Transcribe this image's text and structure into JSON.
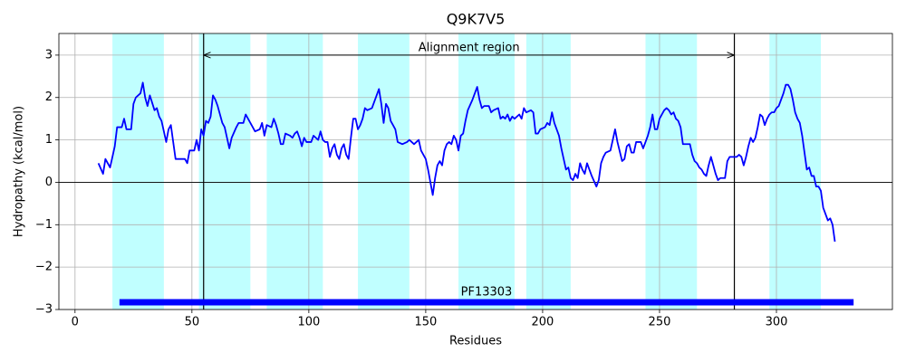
{
  "chart_data": {
    "type": "line",
    "title": "Q9K7V5",
    "xlabel": "Residues",
    "ylabel": "Hydropathy (kcal/mol)",
    "x": [
      10,
      12,
      13,
      15,
      17,
      18,
      20,
      21,
      22,
      24,
      25,
      26,
      28,
      29,
      30,
      31,
      32,
      34,
      35,
      36,
      37,
      38,
      39,
      40,
      41,
      42,
      43,
      46,
      47,
      48,
      49,
      51,
      52,
      53,
      54,
      55,
      56,
      57,
      58,
      59,
      60,
      61,
      63,
      64,
      66,
      67,
      69,
      70,
      72,
      73,
      75,
      77,
      79,
      80,
      81,
      82,
      84,
      85,
      86,
      87,
      88,
      89,
      90,
      92,
      93,
      94,
      95,
      96,
      97,
      98,
      99,
      101,
      102,
      103,
      104,
      105,
      106,
      107,
      108,
      109,
      110,
      111,
      112,
      113,
      114,
      115,
      116,
      117,
      118,
      119,
      120,
      121,
      122,
      123,
      124,
      125,
      127,
      130,
      131,
      132,
      133,
      134,
      135,
      136,
      137,
      138,
      140,
      142,
      143,
      144,
      145,
      147,
      148,
      150,
      151,
      152,
      153,
      154,
      155,
      156,
      157,
      158,
      159,
      160,
      161,
      162,
      163,
      164,
      165,
      166,
      167,
      168,
      170,
      172,
      173,
      174,
      175,
      177,
      178,
      179,
      181,
      182,
      183,
      184,
      185,
      186,
      187,
      188,
      190,
      191,
      192,
      193,
      195,
      196,
      197,
      198,
      199,
      201,
      202,
      203,
      204,
      205,
      207,
      208,
      209,
      210,
      211,
      212,
      213,
      214,
      215,
      216,
      217,
      218,
      219,
      220,
      221,
      223,
      224,
      225,
      226,
      227,
      229,
      231,
      232,
      234,
      235,
      236,
      237,
      238,
      239,
      240,
      242,
      243,
      245,
      246,
      247,
      248,
      249,
      250,
      251,
      252,
      253,
      254,
      255,
      256,
      257,
      258,
      259,
      260,
      262,
      263,
      264,
      265,
      266,
      267,
      268,
      269,
      270,
      271,
      272,
      273,
      274,
      275,
      276,
      278,
      279,
      280,
      282,
      283,
      284,
      285,
      286,
      287,
      288,
      289,
      290,
      291,
      292,
      293,
      294,
      295,
      296,
      297,
      298,
      299,
      300,
      301,
      302,
      303,
      304,
      305,
      306,
      307,
      308,
      309,
      310,
      311,
      312,
      313,
      314,
      315,
      316,
      317,
      318,
      319,
      320,
      321,
      322,
      323,
      324,
      325
    ],
    "values": [
      0.45,
      0.2,
      0.55,
      0.35,
      0.85,
      1.3,
      1.3,
      1.5,
      1.25,
      1.25,
      1.85,
      2.0,
      2.1,
      2.35,
      2.0,
      1.8,
      2.05,
      1.7,
      1.75,
      1.55,
      1.45,
      1.2,
      0.95,
      1.25,
      1.35,
      0.95,
      0.55,
      0.55,
      0.55,
      0.45,
      0.75,
      0.75,
      1.0,
      0.75,
      1.25,
      1.1,
      1.45,
      1.4,
      1.55,
      2.05,
      1.95,
      1.8,
      1.4,
      1.3,
      0.8,
      1.05,
      1.3,
      1.4,
      1.4,
      1.6,
      1.4,
      1.2,
      1.25,
      1.4,
      1.1,
      1.35,
      1.3,
      1.5,
      1.35,
      1.15,
      0.9,
      0.9,
      1.15,
      1.1,
      1.05,
      1.15,
      1.2,
      1.05,
      0.85,
      1.05,
      0.95,
      0.95,
      1.1,
      1.05,
      1.0,
      1.2,
      1.0,
      0.95,
      0.95,
      0.6,
      0.8,
      0.9,
      0.65,
      0.55,
      0.8,
      0.9,
      0.65,
      0.55,
      1.05,
      1.5,
      1.5,
      1.25,
      1.35,
      1.5,
      1.75,
      1.7,
      1.75,
      2.2,
      1.85,
      1.4,
      1.85,
      1.75,
      1.45,
      1.35,
      1.25,
      0.95,
      0.9,
      0.95,
      1.0,
      0.95,
      0.9,
      1.0,
      0.75,
      0.55,
      0.3,
      0.0,
      -0.3,
      0.1,
      0.4,
      0.5,
      0.4,
      0.75,
      0.9,
      0.95,
      0.9,
      1.1,
      1.0,
      0.75,
      1.1,
      1.15,
      1.45,
      1.7,
      1.95,
      2.25,
      1.95,
      1.75,
      1.8,
      1.8,
      1.65,
      1.7,
      1.75,
      1.5,
      1.55,
      1.5,
      1.6,
      1.45,
      1.55,
      1.5,
      1.6,
      1.5,
      1.75,
      1.65,
      1.7,
      1.65,
      1.15,
      1.15,
      1.25,
      1.3,
      1.4,
      1.35,
      1.65,
      1.4,
      1.1,
      0.8,
      0.55,
      0.3,
      0.35,
      0.1,
      0.05,
      0.2,
      0.1,
      0.45,
      0.3,
      0.2,
      0.45,
      0.3,
      0.15,
      -0.1,
      0.05,
      0.45,
      0.6,
      0.7,
      0.75,
      1.25,
      0.95,
      0.5,
      0.55,
      0.85,
      0.9,
      0.7,
      0.7,
      0.95,
      0.95,
      0.8,
      1.1,
      1.3,
      1.6,
      1.25,
      1.25,
      1.5,
      1.6,
      1.7,
      1.75,
      1.7,
      1.6,
      1.65,
      1.5,
      1.45,
      1.3,
      0.9,
      0.9,
      0.9,
      0.65,
      0.5,
      0.45,
      0.35,
      0.3,
      0.2,
      0.15,
      0.4,
      0.6,
      0.4,
      0.2,
      0.05,
      0.1,
      0.1,
      0.5,
      0.6,
      0.6,
      0.6,
      0.65,
      0.6,
      0.4,
      0.6,
      0.85,
      1.05,
      0.95,
      1.05,
      1.3,
      1.6,
      1.55,
      1.35,
      1.5,
      1.6,
      1.65,
      1.65,
      1.75,
      1.8,
      1.95,
      2.1,
      2.3,
      2.3,
      2.2,
      1.95,
      1.65,
      1.5,
      1.4,
      1.1,
      0.7,
      0.3,
      0.35,
      0.15,
      0.15,
      -0.1,
      -0.1,
      -0.2,
      -0.6,
      -0.75,
      -0.9,
      -0.85,
      -1.0,
      -1.4
    ],
    "color": "#0000ff",
    "xlim": [
      -6.9,
      349.6
    ],
    "ylim": [
      -3,
      3.51
    ],
    "xticks": [
      0,
      50,
      100,
      150,
      200,
      250,
      300
    ],
    "yticks": [
      {
        "value": -3,
        "label": "−3"
      },
      {
        "value": -2,
        "label": "−2"
      },
      {
        "value": -1,
        "label": "−1"
      },
      0,
      1,
      2,
      3
    ],
    "grid": true,
    "hline": 0,
    "regions": [
      [
        16,
        38
      ],
      [
        53,
        75
      ],
      [
        82,
        106
      ],
      [
        121,
        143
      ],
      [
        164,
        188
      ],
      [
        193,
        212
      ],
      [
        244,
        266
      ],
      [
        297,
        319
      ]
    ],
    "region_color": "#c0ffff",
    "vlines": [
      55,
      282
    ],
    "annotation": {
      "text": "Alignment region",
      "x": [
        55,
        282
      ],
      "y": 3
    },
    "domain": {
      "label": "PF13303",
      "start": 19,
      "end": 333,
      "y": -2.83,
      "color": "#0000ff"
    }
  }
}
